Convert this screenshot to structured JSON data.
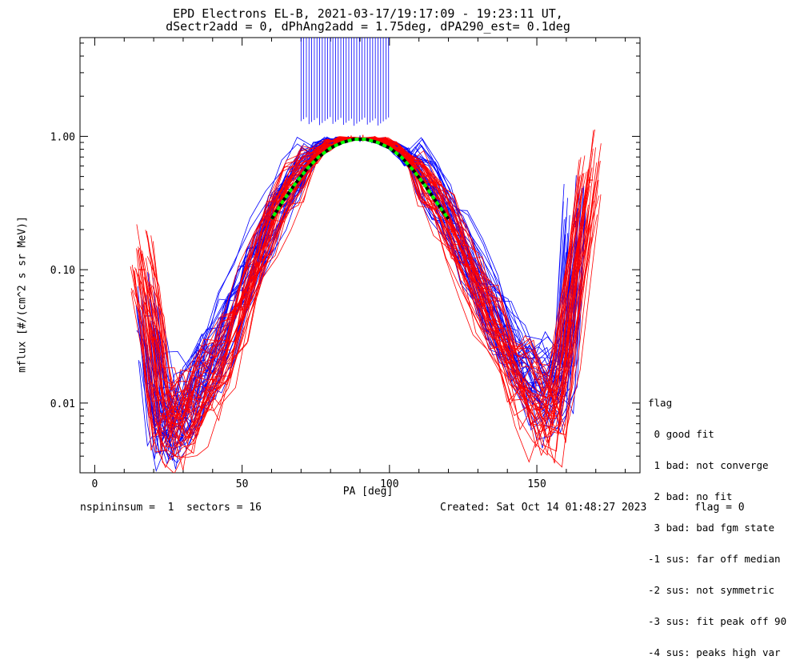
{
  "title_line1": "EPD Electrons EL-B, 2021-03-17/19:17:09 - 19:23:11 UT,",
  "title_line2": "dSectr2add = 0, dPhAng2add = 1.75deg, dPA290_est=   0.1deg",
  "footer": {
    "left": "nspininsum =  1  sectors = 16",
    "created": "Created: Sat Oct 14 01:48:27 2023",
    "flag": "flag = 0"
  },
  "legend": {
    "title": "flag",
    "items": [
      " 0 good fit",
      " 1 bad: not converge",
      " 2 bad: no fit",
      " 3 bad: bad fgm state",
      "-1 sus: far off median",
      "-2 sus: not symmetric",
      "-3 sus: fit peak off 90",
      "-4 sus: peaks high var"
    ]
  },
  "colors": {
    "series_blue": "#0000ff",
    "series_red": "#ff0000",
    "fit_green": "#00ff00",
    "fit_black": "#000000"
  },
  "chart_data": {
    "type": "line",
    "xlabel": "PA [deg]",
    "ylabel": "mflux [#/(cm^2 s sr MeV)]",
    "xlim": [
      -5,
      185
    ],
    "ylim": [
      0.003,
      5.5
    ],
    "yscale": "log",
    "xticks": [
      0,
      50,
      100,
      150
    ],
    "yticks": [
      0.01,
      0.1,
      1.0
    ],
    "ytick_labels": [
      "0.01",
      "0.10",
      "1.00"
    ],
    "grid": false,
    "series": [
      {
        "color": "blue",
        "x": [
          18,
          21,
          24,
          28,
          32,
          36,
          40,
          45,
          50,
          55,
          60,
          65,
          70,
          75,
          78,
          82,
          86,
          90,
          94,
          98,
          102,
          106,
          110,
          115,
          120,
          125,
          130,
          135,
          140,
          145,
          150,
          155,
          160,
          163
        ],
        "y": [
          0.045,
          0.012,
          0.006,
          0.009,
          0.012,
          0.016,
          0.022,
          0.038,
          0.07,
          0.13,
          0.25,
          0.4,
          0.58,
          0.78,
          0.88,
          0.92,
          0.95,
          0.96,
          0.94,
          0.9,
          0.82,
          0.7,
          0.56,
          0.42,
          0.26,
          0.15,
          0.085,
          0.05,
          0.03,
          0.02,
          0.015,
          0.012,
          0.02,
          0.22
        ]
      },
      {
        "color": "red",
        "x": [
          16,
          20,
          23,
          27,
          31,
          35,
          40,
          45,
          50,
          55,
          60,
          65,
          70,
          75,
          79,
          83,
          87,
          91,
          95,
          99,
          103,
          107,
          111,
          116,
          121,
          126,
          131,
          136,
          141,
          146,
          151,
          156,
          161,
          168
        ],
        "y": [
          0.1,
          0.03,
          0.008,
          0.007,
          0.009,
          0.011,
          0.015,
          0.025,
          0.05,
          0.11,
          0.22,
          0.36,
          0.52,
          0.72,
          0.86,
          0.93,
          0.96,
          0.97,
          0.95,
          0.9,
          0.8,
          0.66,
          0.5,
          0.34,
          0.2,
          0.11,
          0.06,
          0.035,
          0.02,
          0.013,
          0.009,
          0.008,
          0.04,
          0.47
        ]
      }
    ],
    "fit": {
      "x": [
        60,
        64,
        68,
        72,
        76,
        80,
        84,
        88,
        92,
        96,
        100,
        104,
        108,
        112,
        116,
        120
      ],
      "y": [
        0.24,
        0.33,
        0.44,
        0.57,
        0.7,
        0.82,
        0.9,
        0.95,
        0.95,
        0.9,
        0.82,
        0.7,
        0.56,
        0.43,
        0.32,
        0.24
      ],
      "colors": [
        "black",
        "green"
      ]
    },
    "spikes": {
      "x_from": 70,
      "x_to": 100,
      "y_top": 5.5,
      "y_bottom": 1.2
    }
  }
}
